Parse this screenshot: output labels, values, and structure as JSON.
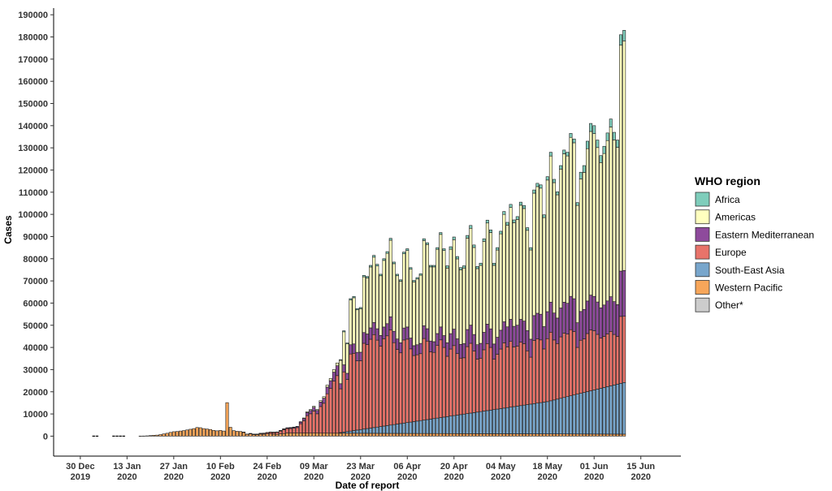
{
  "chart_data": {
    "type": "bar",
    "stacked": true,
    "xlabel": "Date of report",
    "ylabel": "Cases",
    "ylim": [
      -9000,
      193000
    ],
    "y_ticks": [
      0,
      10000,
      20000,
      30000,
      40000,
      50000,
      60000,
      70000,
      80000,
      90000,
      100000,
      110000,
      120000,
      130000,
      140000,
      150000,
      160000,
      170000,
      180000,
      190000
    ],
    "y_tick_labels": [
      "0",
      "10000",
      "20000",
      "30000",
      "40000",
      "50000",
      "60000",
      "70000",
      "80000",
      "90000",
      "100000",
      "110000",
      "120000",
      "130000",
      "140000",
      "150000",
      "160000",
      "170000",
      "180000",
      "190000"
    ],
    "x_range_days": [
      -8,
      180
    ],
    "x_ticks": [
      {
        "day": 0,
        "line1": "30 Dec",
        "line2": "2019"
      },
      {
        "day": 14,
        "line1": "13 Jan",
        "line2": "2020"
      },
      {
        "day": 28,
        "line1": "27 Jan",
        "line2": "2020"
      },
      {
        "day": 42,
        "line1": "10 Feb",
        "line2": "2020"
      },
      {
        "day": 56,
        "line1": "24 Feb",
        "line2": "2020"
      },
      {
        "day": 70,
        "line1": "09 Mar",
        "line2": "2020"
      },
      {
        "day": 84,
        "line1": "23 Mar",
        "line2": "2020"
      },
      {
        "day": 98,
        "line1": "06 Apr",
        "line2": "2020"
      },
      {
        "day": 112,
        "line1": "20 Apr",
        "line2": "2020"
      },
      {
        "day": 126,
        "line1": "04 May",
        "line2": "2020"
      },
      {
        "day": 140,
        "line1": "18 May",
        "line2": "2020"
      },
      {
        "day": 154,
        "line1": "01 Jun",
        "line2": "2020"
      },
      {
        "day": 168,
        "line1": "15 Jun",
        "line2": "2020"
      }
    ],
    "legend": {
      "title": "WHO region",
      "placement": "right",
      "entries": [
        {
          "name": "Africa",
          "color": "#7fcdbb"
        },
        {
          "name": "Americas",
          "color": "#ffffbf"
        },
        {
          "name": "Eastern Mediterranean",
          "color": "#8e4a9c"
        },
        {
          "name": "Europe",
          "color": "#e8736a"
        },
        {
          "name": "South-East Asia",
          "color": "#78a6cc"
        },
        {
          "name": "Western Pacific",
          "color": "#f7a65a"
        },
        {
          "name": "Other*",
          "color": "#cccccc"
        }
      ]
    },
    "series_order_bottom_to_top": [
      "Western Pacific",
      "South-East Asia",
      "Europe",
      "Eastern Mediterranean",
      "Americas",
      "Africa"
    ],
    "colors": {
      "Western Pacific": "#f7a65a",
      "South-East Asia": "#78a6cc",
      "Europe": "#e8736a",
      "Eastern Mediterranean": "#8e4a9c",
      "Americas": "#ffffbf",
      "Africa": "#7fcdbb",
      "Other*": "#cccccc"
    },
    "early_days": [
      4,
      5,
      10,
      11,
      12,
      13
    ],
    "start_day": 16,
    "totals": [
      0,
      0,
      50,
      70,
      140,
      270,
      400,
      470,
      700,
      1000,
      1300,
      1700,
      2000,
      2100,
      2300,
      2500,
      2800,
      3100,
      3400,
      3900,
      3800,
      3400,
      3200,
      3000,
      2600,
      2400,
      2600,
      2300,
      15100,
      4000,
      2500,
      2200,
      2100,
      1800,
      950,
      1200,
      900,
      950,
      1300,
      1350,
      1650,
      1850,
      1800,
      1900,
      2600,
      3300,
      3800,
      3900,
      4100,
      4400,
      6500,
      8200,
      11000,
      12000,
      13500,
      12000,
      16000,
      17800,
      23000,
      26000,
      30000,
      33000,
      34500,
      47500,
      42000,
      62000,
      63000,
      57500,
      58000,
      72500,
      72000,
      77000,
      81500,
      77500,
      73000,
      80000,
      83200,
      89200,
      78500,
      73000,
      70500,
      83000,
      84500,
      76000,
      70200,
      71500,
      73200,
      89000,
      87200,
      77000,
      77000,
      85000,
      91800,
      84500,
      76800,
      85400,
      89800,
      81000,
      76000,
      76800,
      90500,
      95000,
      86200,
      76500,
      78000,
      89000,
      97400,
      93000,
      78000,
      85000,
      92400,
      101300,
      96400,
      104500,
      97500,
      99000,
      105500,
      104000,
      94000,
      85000,
      111000,
      114000,
      113300,
      99800,
      117000,
      128000,
      115800,
      110200,
      122000,
      129000,
      128000,
      136500,
      134000,
      105300,
      119000,
      122000,
      133000,
      141000,
      140000,
      133500,
      126500,
      130700,
      136700,
      143000,
      137000,
      133500,
      181000,
      183000
    ]
  }
}
